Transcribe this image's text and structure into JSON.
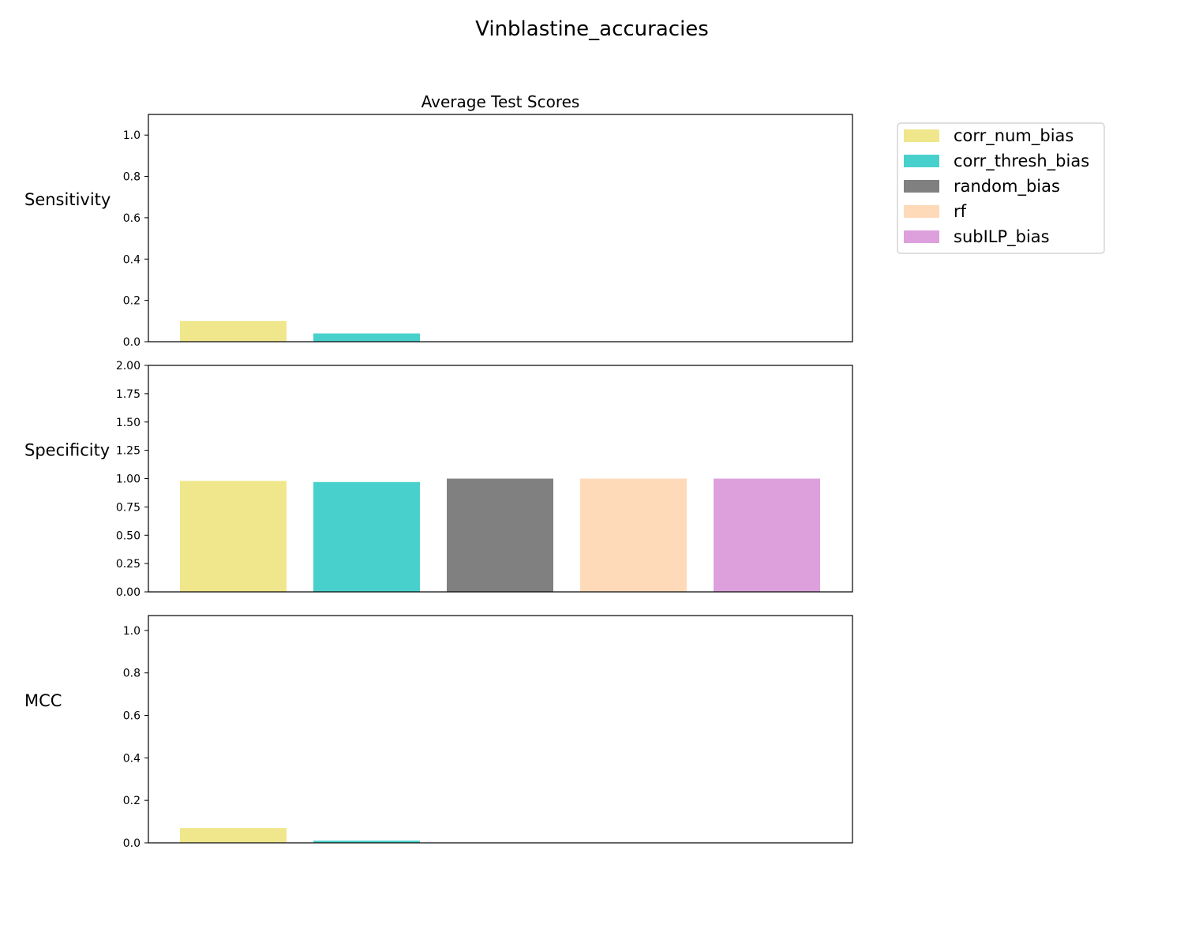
{
  "figure": {
    "suptitle": "Vinblastine_accuracies",
    "subtitle": "Average Test Scores"
  },
  "legend": {
    "placement": "outside-right-top",
    "entries": [
      {
        "label": "corr_num_bias",
        "color": "#f0e68c"
      },
      {
        "label": "corr_thresh_bias",
        "color": "#48d1cc"
      },
      {
        "label": "random_bias",
        "color": "#808080"
      },
      {
        "label": "rf",
        "color": "#ffdab9"
      },
      {
        "label": "subILP_bias",
        "color": "#dda0dd"
      }
    ]
  },
  "chart_data": [
    {
      "type": "bar",
      "row_label": "Sensitivity",
      "categories": [
        "corr_num_bias",
        "corr_thresh_bias",
        "random_bias",
        "rf",
        "subILP_bias"
      ],
      "values": [
        0.1,
        0.04,
        0.0,
        0.0,
        0.0
      ],
      "ylim": [
        0,
        1.1
      ],
      "yticks": [
        "0.0",
        "0.2",
        "0.4",
        "0.6",
        "0.8",
        "1.0"
      ],
      "grid": false
    },
    {
      "type": "bar",
      "row_label": "Specificity",
      "categories": [
        "corr_num_bias",
        "corr_thresh_bias",
        "random_bias",
        "rf",
        "subILP_bias"
      ],
      "values": [
        0.98,
        0.97,
        1.0,
        1.0,
        1.0
      ],
      "ylim": [
        0,
        2.0
      ],
      "yticks": [
        "0.00",
        "0.25",
        "0.50",
        "0.75",
        "1.00",
        "1.25",
        "1.50",
        "1.75",
        "2.00"
      ],
      "grid": false
    },
    {
      "type": "bar",
      "row_label": "MCC",
      "categories": [
        "corr_num_bias",
        "corr_thresh_bias",
        "random_bias",
        "rf",
        "subILP_bias"
      ],
      "values": [
        0.07,
        0.01,
        0.0,
        0.0,
        0.0
      ],
      "ylim": [
        0,
        1.07
      ],
      "yticks": [
        "0.0",
        "0.2",
        "0.4",
        "0.6",
        "0.8",
        "1.0"
      ],
      "grid": false
    }
  ]
}
